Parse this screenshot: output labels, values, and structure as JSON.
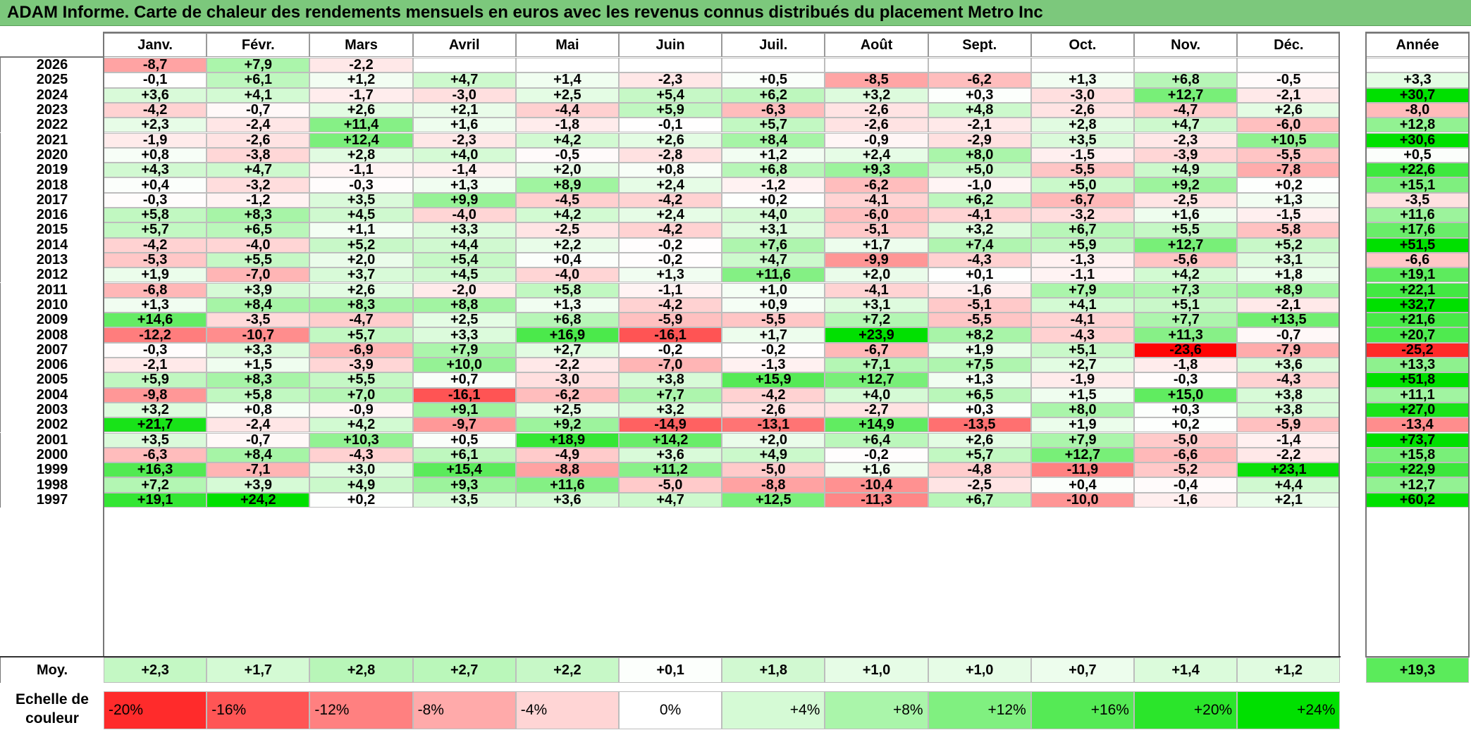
{
  "title": "ADAM Informe. Carte de chaleur des rendements mensuels en euros avec les revenus connus distribués du placement Metro Inc",
  "chart_data": {
    "type": "heatmap",
    "months": [
      "Janv.",
      "Févr.",
      "Mars",
      "Avril",
      "Mai",
      "Juin",
      "Juil.",
      "Août",
      "Sept.",
      "Oct.",
      "Nov.",
      "Déc."
    ],
    "year_label": "Année",
    "rows": [
      {
        "year": "2026",
        "values": [
          "-8,7",
          "+7,9",
          "-2,2",
          "",
          "",
          "",
          "",
          "",
          "",
          "",
          "",
          ""
        ],
        "annual": ""
      },
      {
        "year": "2025",
        "values": [
          "-0,1",
          "+6,1",
          "+1,2",
          "+4,7",
          "+1,4",
          "-2,3",
          "+0,5",
          "-8,5",
          "-6,2",
          "+1,3",
          "+6,8",
          "-0,5"
        ],
        "annual": "+3,3"
      },
      {
        "year": "2024",
        "values": [
          "+3,6",
          "+4,1",
          "-1,7",
          "-3,0",
          "+2,5",
          "+5,4",
          "+6,2",
          "+3,2",
          "+0,3",
          "-3,0",
          "+12,7",
          "-2,1"
        ],
        "annual": "+30,7"
      },
      {
        "year": "2023",
        "values": [
          "-4,2",
          "-0,7",
          "+2,6",
          "+2,1",
          "-4,4",
          "+5,9",
          "-6,3",
          "-2,6",
          "+4,8",
          "-2,6",
          "-4,7",
          "+2,6"
        ],
        "annual": "-8,0"
      },
      {
        "year": "2022",
        "values": [
          "+2,3",
          "-2,4",
          "+11,4",
          "+1,6",
          "-1,8",
          "-0,1",
          "+5,7",
          "-2,6",
          "-2,1",
          "+2,8",
          "+4,7",
          "-6,0"
        ],
        "annual": "+12,8"
      },
      {
        "year": "2021",
        "values": [
          "-1,9",
          "-2,6",
          "+12,4",
          "-2,3",
          "+4,2",
          "+2,6",
          "+8,4",
          "-0,9",
          "-2,9",
          "+3,5",
          "-2,3",
          "+10,5"
        ],
        "annual": "+30,6"
      },
      {
        "year": "2020",
        "values": [
          "+0,8",
          "-3,8",
          "+2,8",
          "+4,0",
          "-0,5",
          "-2,8",
          "+1,2",
          "+2,4",
          "+8,0",
          "-1,5",
          "-3,9",
          "-5,5"
        ],
        "annual": "+0,5"
      },
      {
        "year": "2019",
        "values": [
          "+4,3",
          "+4,7",
          "-1,1",
          "-1,4",
          "+2,0",
          "+0,8",
          "+6,8",
          "+9,3",
          "+5,0",
          "-5,5",
          "+4,9",
          "-7,8"
        ],
        "annual": "+22,6"
      },
      {
        "year": "2018",
        "values": [
          "+0,4",
          "-3,2",
          "-0,3",
          "+1,3",
          "+8,9",
          "+2,4",
          "-1,2",
          "-6,2",
          "-1,0",
          "+5,0",
          "+9,2",
          "+0,2"
        ],
        "annual": "+15,1"
      },
      {
        "year": "2017",
        "values": [
          "-0,3",
          "-1,2",
          "+3,5",
          "+9,9",
          "-4,5",
          "-4,2",
          "+0,2",
          "-4,1",
          "+6,2",
          "-6,7",
          "-2,5",
          "+1,3"
        ],
        "annual": "-3,5"
      },
      {
        "year": "2016",
        "values": [
          "+5,8",
          "+8,3",
          "+4,5",
          "-4,0",
          "+4,2",
          "+2,4",
          "+4,0",
          "-6,0",
          "-4,1",
          "-3,2",
          "+1,6",
          "-1,5"
        ],
        "annual": "+11,6"
      },
      {
        "year": "2015",
        "values": [
          "+5,7",
          "+6,5",
          "+1,1",
          "+3,3",
          "-2,5",
          "-4,2",
          "+3,1",
          "-5,1",
          "+3,2",
          "+6,7",
          "+5,5",
          "-5,8"
        ],
        "annual": "+17,6"
      },
      {
        "year": "2014",
        "values": [
          "-4,2",
          "-4,0",
          "+5,2",
          "+4,4",
          "+2,2",
          "-0,2",
          "+7,6",
          "+1,7",
          "+7,4",
          "+5,9",
          "+12,7",
          "+5,2"
        ],
        "annual": "+51,5"
      },
      {
        "year": "2013",
        "values": [
          "-5,3",
          "+5,5",
          "+2,0",
          "+5,4",
          "+0,4",
          "-0,2",
          "+4,7",
          "-9,9",
          "-4,3",
          "-1,3",
          "-5,6",
          "+3,1"
        ],
        "annual": "-6,6"
      },
      {
        "year": "2012",
        "values": [
          "+1,9",
          "-7,0",
          "+3,7",
          "+4,5",
          "-4,0",
          "+1,3",
          "+11,6",
          "+2,0",
          "+0,1",
          "-1,1",
          "+4,2",
          "+1,8"
        ],
        "annual": "+19,1"
      },
      {
        "year": "2011",
        "values": [
          "-6,8",
          "+3,9",
          "+2,6",
          "-2,0",
          "+5,8",
          "-1,1",
          "+1,0",
          "-4,1",
          "-1,6",
          "+7,9",
          "+7,3",
          "+8,9"
        ],
        "annual": "+22,1"
      },
      {
        "year": "2010",
        "values": [
          "+1,3",
          "+8,4",
          "+8,3",
          "+8,8",
          "+1,3",
          "-4,2",
          "+0,9",
          "+3,1",
          "-5,1",
          "+4,1",
          "+5,1",
          "-2,1"
        ],
        "annual": "+32,7"
      },
      {
        "year": "2009",
        "values": [
          "+14,6",
          "-3,5",
          "-4,7",
          "+2,5",
          "+6,8",
          "-5,9",
          "-5,5",
          "+7,2",
          "-5,5",
          "-4,1",
          "+7,7",
          "+13,5"
        ],
        "annual": "+21,6"
      },
      {
        "year": "2008",
        "values": [
          "-12,2",
          "-10,7",
          "+5,7",
          "+3,3",
          "+16,9",
          "-16,1",
          "+1,7",
          "+23,9",
          "+8,2",
          "-4,3",
          "+11,3",
          "-0,7"
        ],
        "annual": "+20,7"
      },
      {
        "year": "2007",
        "values": [
          "-0,3",
          "+3,3",
          "-6,9",
          "+7,9",
          "+2,7",
          "-0,2",
          "-0,2",
          "-6,7",
          "+1,9",
          "+5,1",
          "-23,6",
          "-7,9"
        ],
        "annual": "-25,2"
      },
      {
        "year": "2006",
        "values": [
          "-2,1",
          "+1,5",
          "-3,9",
          "+10,0",
          "-2,2",
          "-7,0",
          "-1,3",
          "+7,1",
          "+7,5",
          "+2,7",
          "-1,8",
          "+3,6"
        ],
        "annual": "+13,3"
      },
      {
        "year": "2005",
        "values": [
          "+5,9",
          "+8,3",
          "+5,5",
          "+0,7",
          "-3,0",
          "+3,8",
          "+15,9",
          "+12,7",
          "+1,3",
          "-1,9",
          "-0,3",
          "-4,3"
        ],
        "annual": "+51,8"
      },
      {
        "year": "2004",
        "values": [
          "-9,8",
          "+5,8",
          "+7,0",
          "-16,1",
          "-6,2",
          "+7,7",
          "-4,2",
          "+4,0",
          "+6,5",
          "+1,5",
          "+15,0",
          "+3,8"
        ],
        "annual": "+11,1"
      },
      {
        "year": "2003",
        "values": [
          "+3,2",
          "+0,8",
          "-0,9",
          "+9,1",
          "+2,5",
          "+3,2",
          "-2,6",
          "-2,7",
          "+0,3",
          "+8,0",
          "+0,3",
          "+3,8"
        ],
        "annual": "+27,0"
      },
      {
        "year": "2002",
        "values": [
          "+21,7",
          "-2,4",
          "+4,2",
          "-9,7",
          "+9,2",
          "-14,9",
          "-13,1",
          "+14,9",
          "-13,5",
          "+1,9",
          "+0,2",
          "-5,9"
        ],
        "annual": "-13,4"
      },
      {
        "year": "2001",
        "values": [
          "+3,5",
          "-0,7",
          "+10,3",
          "+0,5",
          "+18,9",
          "+14,2",
          "+2,0",
          "+6,4",
          "+2,6",
          "+7,9",
          "-5,0",
          "-1,4"
        ],
        "annual": "+73,7"
      },
      {
        "year": "2000",
        "values": [
          "-6,3",
          "+8,4",
          "-4,3",
          "+6,1",
          "-4,9",
          "+3,6",
          "+4,9",
          "-0,2",
          "+5,7",
          "+12,7",
          "-6,6",
          "-2,2"
        ],
        "annual": "+15,8"
      },
      {
        "year": "1999",
        "values": [
          "+16,3",
          "-7,1",
          "+3,0",
          "+15,4",
          "-8,8",
          "+11,2",
          "-5,0",
          "+1,6",
          "-4,8",
          "-11,9",
          "-5,2",
          "+23,1"
        ],
        "annual": "+22,9"
      },
      {
        "year": "1998",
        "values": [
          "+7,2",
          "+3,9",
          "+4,9",
          "+9,3",
          "+11,6",
          "-5,0",
          "-8,8",
          "-10,4",
          "-2,5",
          "+0,4",
          "-0,4",
          "+4,4"
        ],
        "annual": "+12,7"
      },
      {
        "year": "1997",
        "values": [
          "+19,1",
          "+24,2",
          "+0,2",
          "+3,5",
          "+3,6",
          "+4,7",
          "+12,5",
          "-11,3",
          "+6,7",
          "-10,0",
          "-1,6",
          "+2,1"
        ],
        "annual": "+60,2"
      }
    ],
    "average": {
      "label": "Moy.",
      "values": [
        "+2,3",
        "+1,7",
        "+2,8",
        "+2,7",
        "+2,2",
        "+0,1",
        "+1,8",
        "+1,0",
        "+1,0",
        "+0,7",
        "+1,4",
        "+1,2"
      ],
      "annual": "+19,3"
    },
    "scale": {
      "label_line1": "Echelle de",
      "label_line2": "couleur",
      "stops": [
        "-20%",
        "-16%",
        "-12%",
        "-8%",
        "-4%",
        "0%",
        "+4%",
        "+8%",
        "+12%",
        "+16%",
        "+20%",
        "+24%"
      ]
    },
    "colors": {
      "negative_max": "#FF0000",
      "neutral": "#FFFFFF",
      "positive_max": "#00E000",
      "title_bar": "#7CC87C"
    }
  }
}
